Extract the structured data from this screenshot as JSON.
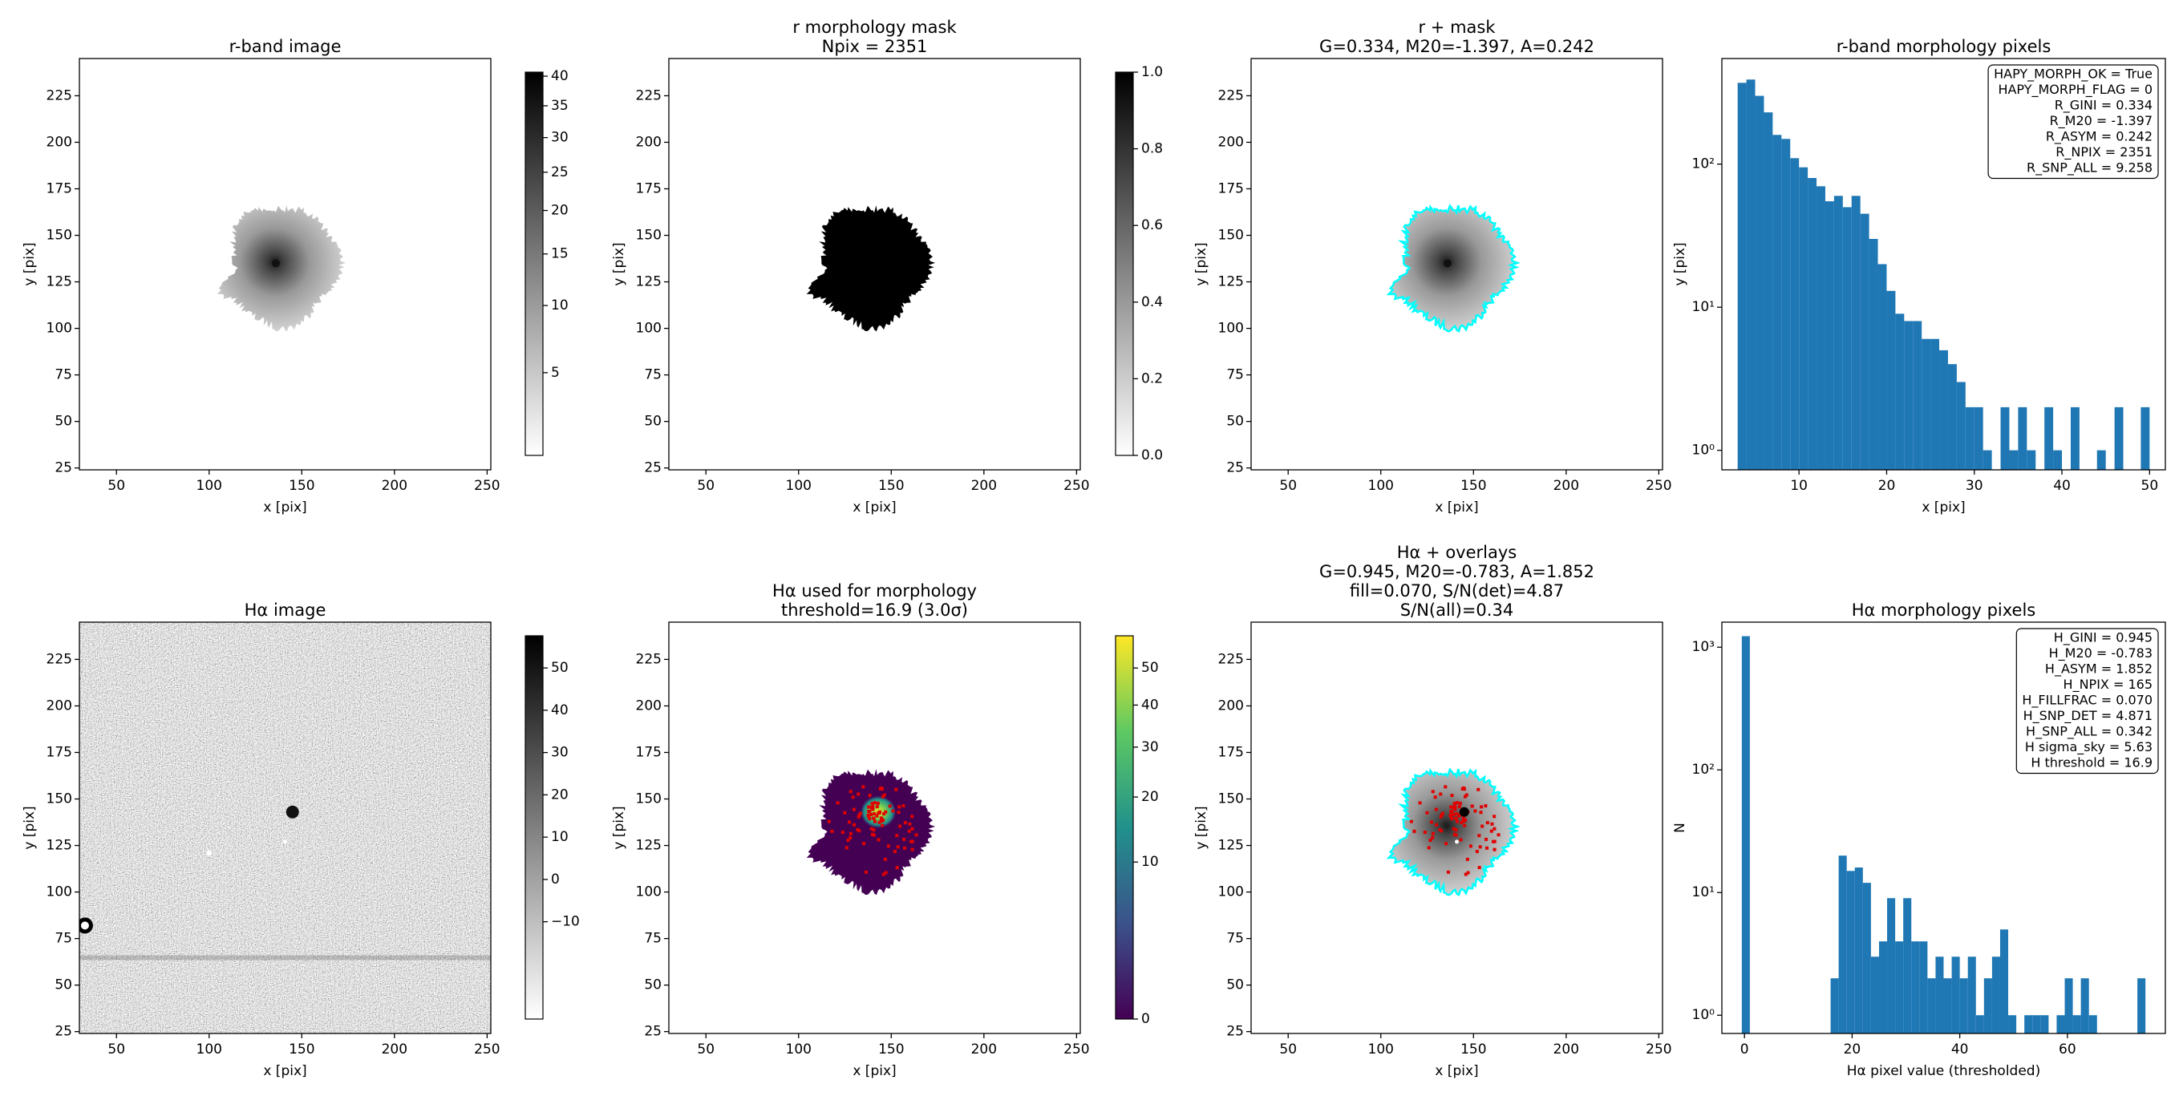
{
  "chart_data": [
    {
      "type": "image",
      "title": [
        "r-band image"
      ],
      "xlabel": "x [pix]",
      "ylabel": "y [pix]",
      "xlim": [
        30,
        252
      ],
      "ylim": [
        24,
        245
      ],
      "xticks": [
        50,
        100,
        150,
        200,
        250
      ],
      "yticks": [
        25,
        50,
        75,
        100,
        125,
        150,
        175,
        200,
        225
      ],
      "colorbar": {
        "cmap": "gray_r",
        "scale": "sqrt",
        "lim": [
          1.2,
          40.7
        ],
        "ticks": [
          5,
          10,
          15,
          20,
          25,
          30,
          35,
          40
        ]
      }
    },
    {
      "type": "image",
      "title": [
        "r morphology mask",
        "Npix = 2351"
      ],
      "xlabel": "x [pix]",
      "ylabel": "y [pix]",
      "xlim": [
        30,
        252
      ],
      "ylim": [
        24,
        245
      ],
      "xticks": [
        50,
        100,
        150,
        200,
        250
      ],
      "yticks": [
        25,
        50,
        75,
        100,
        125,
        150,
        175,
        200,
        225
      ],
      "colorbar": {
        "cmap": "gray_r",
        "scale": "linear",
        "lim": [
          0,
          1
        ],
        "ticks": [
          {
            "value": 0,
            "label": "0.0"
          },
          0.2,
          0.4,
          0.6,
          0.8,
          {
            "value": 1,
            "label": "1.0"
          }
        ]
      }
    },
    {
      "type": "image",
      "title": [
        "r + mask",
        "G=0.334, M20=-1.397, A=0.242"
      ],
      "xlabel": "x [pix]",
      "ylabel": "y [pix]",
      "xlim": [
        30,
        252
      ],
      "ylim": [
        24,
        245
      ],
      "xticks": [
        50,
        100,
        150,
        200,
        250
      ],
      "yticks": [
        25,
        50,
        75,
        100,
        125,
        150,
        175,
        200,
        225
      ]
    },
    {
      "type": "histogram",
      "title": [
        "r-band morphology pixels"
      ],
      "xlabel": "x [pix]",
      "ylabel": "y [pix]",
      "color": "#1f77b4",
      "yscale": "log",
      "xlim": [
        1.2,
        51.8
      ],
      "ylim": [
        0.73,
        547
      ],
      "xticks": [
        10,
        20,
        30,
        40,
        50
      ],
      "yticks": [
        {
          "value": 1,
          "label": "10⁰"
        },
        {
          "value": 10,
          "label": "10¹"
        },
        {
          "value": 100,
          "label": "10²"
        }
      ],
      "bins": [
        3,
        4,
        5,
        6,
        7,
        8,
        9,
        10,
        11,
        12,
        13,
        14,
        15,
        16,
        17,
        18,
        19,
        20,
        21,
        22,
        23,
        24,
        25,
        26,
        27,
        28,
        29,
        30,
        31,
        32,
        33,
        34,
        35,
        36,
        37,
        38,
        39,
        40,
        41,
        42,
        43,
        44,
        45,
        46,
        47,
        48,
        49,
        50
      ],
      "counts": [
        370,
        390,
        300,
        230,
        160,
        150,
        110,
        95,
        80,
        70,
        55,
        60,
        50,
        60,
        45,
        30,
        20,
        13,
        9,
        8,
        8,
        6,
        6,
        5,
        4,
        3,
        2,
        2,
        1,
        0,
        2,
        1,
        2,
        1,
        0,
        2,
        1,
        0,
        2,
        0,
        0,
        1,
        0,
        2,
        0,
        0,
        2
      ],
      "annotation": [
        "HAPY_MORPH_OK = True",
        "HAPY_MORPH_FLAG = 0",
        "R_GINI = 0.334",
        "R_M20 = -1.397",
        "R_ASYM = 0.242",
        "R_NPIX = 2351",
        "R_SNP_ALL = 9.258"
      ]
    },
    {
      "type": "image",
      "title": [
        "Hα image"
      ],
      "xlabel": "x [pix]",
      "ylabel": "y [pix]",
      "xlim": [
        30,
        252
      ],
      "ylim": [
        24,
        245
      ],
      "xticks": [
        50,
        100,
        150,
        200,
        250
      ],
      "yticks": [
        25,
        50,
        75,
        100,
        125,
        150,
        175,
        200,
        225
      ],
      "colorbar": {
        "cmap": "gray_r",
        "scale": "linear",
        "lim": [
          -33,
          57.6
        ],
        "ticks": [
          {
            "value": -10,
            "label": "−10"
          },
          0,
          10,
          20,
          30,
          40,
          50
        ]
      }
    },
    {
      "type": "image",
      "title": [
        "Hα used for morphology",
        "threshold=16.9 (3.0σ)"
      ],
      "xlabel": "x [pix]",
      "ylabel": "y [pix]",
      "xlim": [
        30,
        252
      ],
      "ylim": [
        24,
        245
      ],
      "xticks": [
        50,
        100,
        150,
        200,
        250
      ],
      "yticks": [
        25,
        50,
        75,
        100,
        125,
        150,
        175,
        200,
        225
      ],
      "colorbar": {
        "cmap": "viridis",
        "scale": "sqrt",
        "lim": [
          0,
          59.6
        ],
        "ticks": [
          0,
          10,
          20,
          30,
          40,
          50
        ]
      }
    },
    {
      "type": "image",
      "title": [
        "Hα + overlays",
        "G=0.945, M20=-0.783, A=1.852",
        "fill=0.070, S/N(det)=4.87",
        "S/N(all)=0.34"
      ],
      "xlabel": "x [pix]",
      "ylabel": "y [pix]",
      "xlim": [
        30,
        252
      ],
      "ylim": [
        24,
        245
      ],
      "xticks": [
        50,
        100,
        150,
        200,
        250
      ],
      "yticks": [
        25,
        50,
        75,
        100,
        125,
        150,
        175,
        200,
        225
      ]
    },
    {
      "type": "histogram",
      "title": [
        "Hα morphology pixels"
      ],
      "xlabel": "Hα pixel value (thresholded)",
      "ylabel": "N",
      "color": "#1f77b4",
      "yscale": "log",
      "xlim": [
        -4.2,
        78.2
      ],
      "ylim": [
        0.71,
        1600
      ],
      "xticks": [
        0,
        20,
        40,
        60
      ],
      "yticks": [
        {
          "value": 1,
          "label": "10⁰"
        },
        {
          "value": 10,
          "label": "10¹"
        },
        {
          "value": 100,
          "label": "10²"
        },
        {
          "value": 1000,
          "label": "10³"
        }
      ],
      "bins": [
        -0.5,
        1,
        2.5,
        4,
        5.5,
        7,
        8.5,
        10,
        11.5,
        13,
        14.5,
        16,
        17.5,
        19,
        20.5,
        22,
        23.5,
        25,
        26.5,
        28,
        29.5,
        31,
        32.5,
        34,
        35.5,
        37,
        38.5,
        40,
        41.5,
        43,
        44.5,
        46,
        47.5,
        49,
        50.5,
        52,
        53.5,
        55,
        56.5,
        58,
        59.5,
        61,
        62.5,
        64,
        65.5,
        67,
        68.5,
        70,
        71.5,
        73,
        74.5
      ],
      "counts": [
        1230,
        0,
        0,
        0,
        0,
        0,
        0,
        0,
        0,
        0,
        0,
        2,
        20,
        15,
        16,
        12,
        3,
        4,
        9,
        4,
        9,
        4,
        4,
        2,
        3,
        2,
        3,
        2,
        3,
        1,
        2,
        3,
        5,
        1,
        0,
        1,
        1,
        1,
        0,
        1,
        2,
        1,
        2,
        1,
        0,
        0,
        0,
        0,
        0,
        2
      ],
      "annotation": [
        "H_GINI = 0.945",
        "H_M20 = -0.783",
        "H_ASYM = 1.852",
        "H_NPIX = 165",
        "H_FILLFRAC = 0.070",
        "H_SNP_DET = 4.871",
        "H_SNP_ALL = 0.342",
        "H sigma_sky = 5.63",
        "H threshold = 16.9"
      ]
    }
  ]
}
